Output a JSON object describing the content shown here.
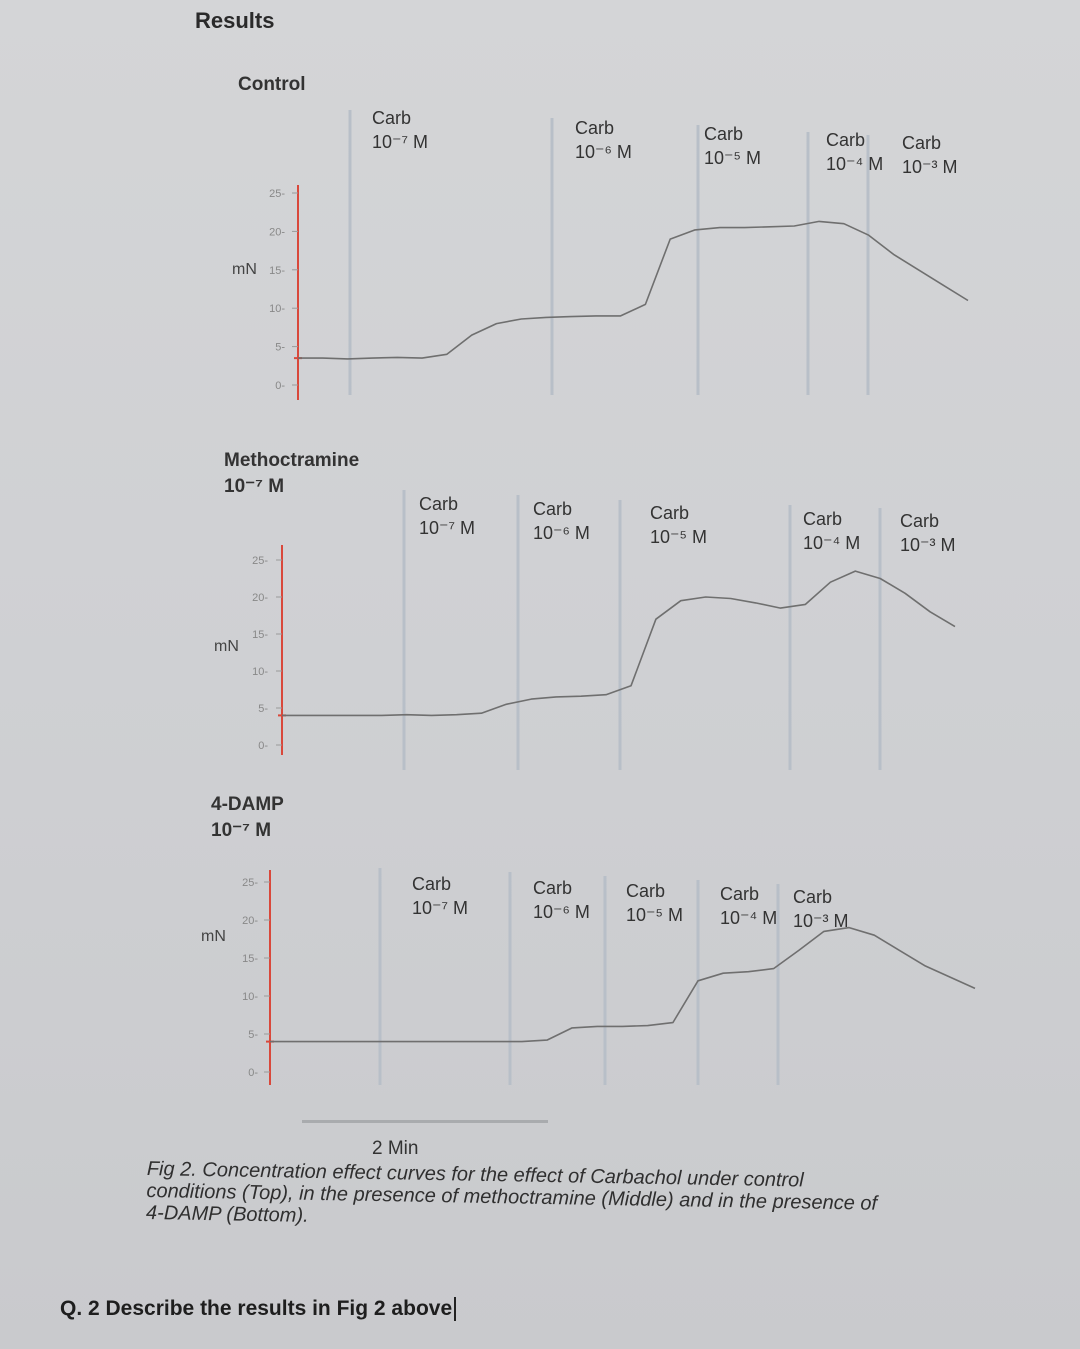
{
  "header": {
    "results_title": "Results"
  },
  "chart_data": [
    {
      "type": "line",
      "panel_title": "Control",
      "drug_lines": [],
      "ylabel": "mN",
      "yticks": [
        "0",
        "5",
        "10",
        "15",
        "20",
        "25"
      ],
      "ylim": [
        0,
        25
      ],
      "markers": [
        {
          "lines": [
            "Carb",
            "10⁻⁷ M"
          ]
        },
        {
          "lines": [
            "Carb",
            "10⁻⁶ M"
          ]
        },
        {
          "lines": [
            "Carb",
            "10⁻⁵ M"
          ]
        },
        {
          "lines": [
            "Carb",
            "10⁻⁴ M"
          ]
        },
        {
          "lines": [
            "Carb",
            "10⁻³ M"
          ]
        }
      ],
      "series": [
        {
          "values": [
            3.5,
            3.5,
            3.4,
            3.5,
            3.6,
            3.5,
            4.0,
            6.5,
            8.0,
            8.6,
            8.8,
            8.9,
            9.0,
            9.0,
            10.5,
            19.0,
            20.2,
            20.5,
            20.5,
            20.6,
            20.7,
            21.3,
            21.0,
            19.5,
            17.0,
            15.0,
            13.0,
            11.0
          ]
        }
      ]
    },
    {
      "type": "line",
      "panel_title": "",
      "drug_lines": [
        "Methoctramine",
        "10⁻⁷ M"
      ],
      "ylabel": "mN",
      "yticks": [
        "0",
        "5",
        "10",
        "15",
        "20",
        "25"
      ],
      "ylim": [
        0,
        25
      ],
      "markers": [
        {
          "lines": [
            "Carb",
            "10⁻⁷ M"
          ]
        },
        {
          "lines": [
            "Carb",
            "10⁻⁶ M"
          ]
        },
        {
          "lines": [
            "Carb",
            "10⁻⁵ M"
          ]
        },
        {
          "lines": [
            "Carb",
            "10⁻⁴ M"
          ]
        },
        {
          "lines": [
            "Carb",
            "10⁻³ M"
          ]
        }
      ],
      "series": [
        {
          "values": [
            4.0,
            4.0,
            4.0,
            4.0,
            4.0,
            4.1,
            4.0,
            4.1,
            4.3,
            5.5,
            6.2,
            6.5,
            6.6,
            6.8,
            8.0,
            17.0,
            19.5,
            20.0,
            19.8,
            19.2,
            18.5,
            19.0,
            22.0,
            23.5,
            22.5,
            20.5,
            18.0,
            16.0
          ]
        }
      ]
    },
    {
      "type": "line",
      "panel_title": "",
      "drug_lines": [
        "4-DAMP",
        "10⁻⁷ M"
      ],
      "ylabel": "mN",
      "yticks": [
        "0",
        "5",
        "10",
        "15",
        "20",
        "25"
      ],
      "ylim": [
        0,
        25
      ],
      "markers": [
        {
          "lines": [
            "Carb",
            "10⁻⁷ M"
          ]
        },
        {
          "lines": [
            "Carb",
            "10⁻⁶ M"
          ]
        },
        {
          "lines": [
            "Carb",
            "10⁻⁵ M"
          ]
        },
        {
          "lines": [
            "Carb",
            "10⁻⁴ M"
          ]
        },
        {
          "lines": [
            "Carb",
            "10⁻³ M"
          ]
        }
      ],
      "series": [
        {
          "values": [
            4.0,
            4.0,
            4.0,
            4.0,
            4.0,
            4.0,
            4.0,
            4.0,
            4.0,
            4.0,
            4.0,
            4.2,
            5.8,
            6.0,
            6.0,
            6.1,
            6.5,
            12.0,
            13.0,
            13.2,
            13.6,
            16.0,
            18.5,
            19.0,
            18.0,
            16.0,
            14.0,
            12.5,
            11.0
          ]
        }
      ]
    }
  ],
  "scale_bar": {
    "label": "2 Min"
  },
  "caption": {
    "line1": "Fig 2. Concentration effect curves for the effect of Carbachol under control",
    "line2": "conditions (Top), in the presence of methoctramine (Middle) and in the presence of",
    "line3": "4-DAMP (Bottom)."
  },
  "question": {
    "text": "Q. 2 Describe the results in Fig 2 above"
  }
}
